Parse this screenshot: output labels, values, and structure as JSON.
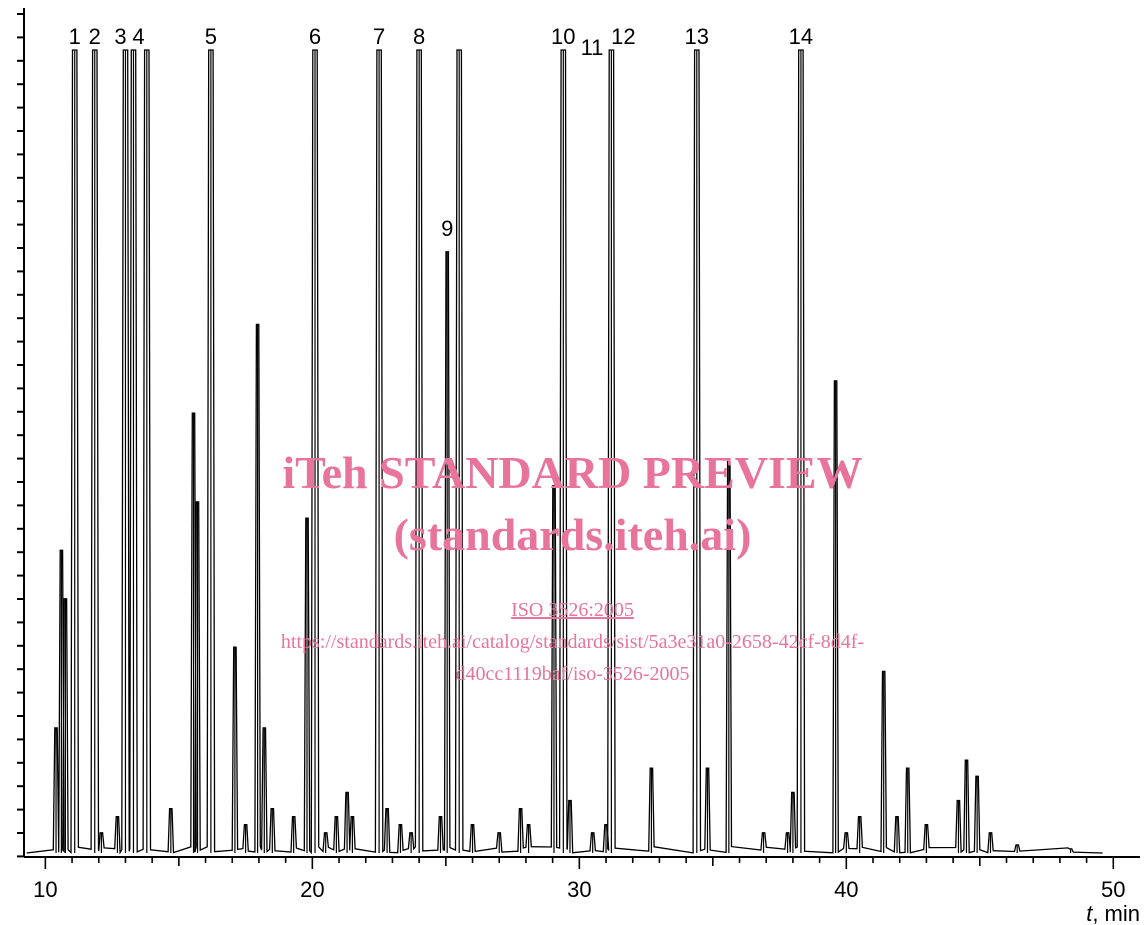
{
  "watermark": {
    "line1": "iTeh STANDARD PREVIEW",
    "line2": "(standards.iteh.ai)",
    "line3": "ISO 3526:2005",
    "line4": "https://standards.iteh.ai/catalog/standards/sist/5a3e31a0-2658-42cf-8d4f-",
    "line5": "d40cc1119baf/iso-3526-2005",
    "color": "#e8749c"
  },
  "chart_data": {
    "type": "line",
    "xlabel_var": "t",
    "xlabel_unit": ", min",
    "xlim": [
      9.2,
      51.0
    ],
    "ylim": [
      0,
      100
    ],
    "x_ticks": [
      10,
      20,
      30,
      40,
      50
    ],
    "baseline": 0.5,
    "peaks": [
      {
        "t": 10.4,
        "h": 16
      },
      {
        "t": 10.6,
        "h": 38
      },
      {
        "t": 10.75,
        "h": 32
      },
      {
        "t": 11.1,
        "h": 100,
        "label": "1"
      },
      {
        "t": 11.85,
        "h": 100,
        "label": "2"
      },
      {
        "t": 12.1,
        "h": 3
      },
      {
        "t": 12.7,
        "h": 5
      },
      {
        "t": 13.0,
        "h": 100,
        "label": "3"
      },
      {
        "t": 13.3,
        "h": 100,
        "label": "4"
      },
      {
        "t": 13.8,
        "h": 100
      },
      {
        "t": 14.7,
        "h": 6
      },
      {
        "t": 15.55,
        "h": 55
      },
      {
        "t": 15.7,
        "h": 44
      },
      {
        "t": 16.2,
        "h": 100,
        "label": "5"
      },
      {
        "t": 17.1,
        "h": 26
      },
      {
        "t": 17.5,
        "h": 4
      },
      {
        "t": 17.95,
        "h": 66
      },
      {
        "t": 18.2,
        "h": 16
      },
      {
        "t": 18.5,
        "h": 6
      },
      {
        "t": 19.3,
        "h": 5
      },
      {
        "t": 19.8,
        "h": 42
      },
      {
        "t": 20.1,
        "h": 100,
        "label": "6"
      },
      {
        "t": 20.5,
        "h": 3
      },
      {
        "t": 20.9,
        "h": 5
      },
      {
        "t": 21.3,
        "h": 8
      },
      {
        "t": 21.5,
        "h": 5
      },
      {
        "t": 22.5,
        "h": 100,
        "label": "7"
      },
      {
        "t": 22.8,
        "h": 6
      },
      {
        "t": 23.3,
        "h": 4
      },
      {
        "t": 23.7,
        "h": 3
      },
      {
        "t": 24.0,
        "h": 100,
        "label": "8"
      },
      {
        "t": 24.8,
        "h": 5
      },
      {
        "t": 25.05,
        "h": 75,
        "label": "9"
      },
      {
        "t": 25.5,
        "h": 100
      },
      {
        "t": 26.0,
        "h": 4
      },
      {
        "t": 27.0,
        "h": 3
      },
      {
        "t": 27.8,
        "h": 6
      },
      {
        "t": 28.1,
        "h": 4
      },
      {
        "t": 29.05,
        "h": 46
      },
      {
        "t": 29.4,
        "h": 100,
        "label": "10"
      },
      {
        "t": 29.65,
        "h": 7
      },
      {
        "t": 30.5,
        "h": 3
      },
      {
        "t": 31.0,
        "h": 4,
        "label": "11"
      },
      {
        "t": 31.2,
        "h": 100,
        "label": "12"
      },
      {
        "t": 32.7,
        "h": 11
      },
      {
        "t": 34.4,
        "h": 100,
        "label": "13"
      },
      {
        "t": 34.8,
        "h": 11
      },
      {
        "t": 35.6,
        "h": 49
      },
      {
        "t": 36.9,
        "h": 3
      },
      {
        "t": 37.8,
        "h": 3
      },
      {
        "t": 38.0,
        "h": 8
      },
      {
        "t": 38.3,
        "h": 100,
        "label": "14"
      },
      {
        "t": 39.6,
        "h": 59
      },
      {
        "t": 40.0,
        "h": 3
      },
      {
        "t": 40.5,
        "h": 5
      },
      {
        "t": 41.4,
        "h": 23
      },
      {
        "t": 41.9,
        "h": 5
      },
      {
        "t": 42.3,
        "h": 11
      },
      {
        "t": 43.0,
        "h": 4
      },
      {
        "t": 44.2,
        "h": 7
      },
      {
        "t": 44.5,
        "h": 12
      },
      {
        "t": 44.9,
        "h": 10
      },
      {
        "t": 45.4,
        "h": 3
      },
      {
        "t": 46.4,
        "h": 1.5
      },
      {
        "t": 48.4,
        "h": 1
      }
    ]
  }
}
